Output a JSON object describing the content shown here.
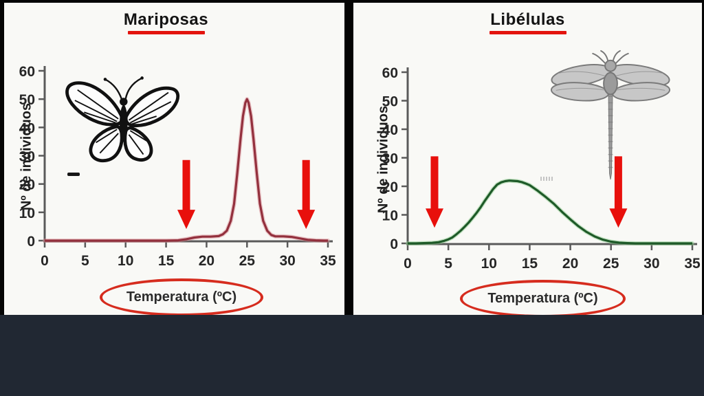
{
  "slide": {
    "background_color": "#000000",
    "bottom_band_color": "#212833",
    "panel_background": "#f9f9f6",
    "layout": "two side-by-side tolerance curve charts separated by black divider"
  },
  "accents": {
    "underline_red": "#e3140e",
    "circle_red": "#d62c1e",
    "arrow_red": "#e8100c",
    "axis_color": "#5a5a5a",
    "tick_text_color": "#262626"
  },
  "chart_data": [
    {
      "type": "line",
      "panel": "left",
      "title": "Mariposas",
      "ylabel": "Nº de individuos",
      "xlabel": "Temperatura (ºC)",
      "xlabel_circled": true,
      "xlim": [
        0,
        35
      ],
      "ylim": [
        0,
        60
      ],
      "xticks": [
        0,
        5,
        10,
        15,
        20,
        25,
        30,
        35
      ],
      "yticks": [
        0,
        10,
        20,
        30,
        40,
        50,
        60
      ],
      "grid": false,
      "legend": "none",
      "peak": {
        "x": 25,
        "y": 50
      },
      "series": [
        {
          "name": "mariposas",
          "color": "#93303d",
          "halo": "#d98f96",
          "points": [
            [
              0,
              0
            ],
            [
              3,
              0
            ],
            [
              6,
              0
            ],
            [
              9,
              0
            ],
            [
              12,
              0
            ],
            [
              15,
              0
            ],
            [
              16.5,
              0.1
            ],
            [
              17.5,
              0.5
            ],
            [
              18.5,
              1.1
            ],
            [
              19.5,
              1.4
            ],
            [
              20.5,
              1.4
            ],
            [
              21.5,
              1.6
            ],
            [
              22,
              2.2
            ],
            [
              22.5,
              3.5
            ],
            [
              23,
              7
            ],
            [
              23.4,
              13
            ],
            [
              23.8,
              24
            ],
            [
              24.2,
              36
            ],
            [
              24.5,
              44
            ],
            [
              24.8,
              48.7
            ],
            [
              25,
              50
            ],
            [
              25.2,
              48.7
            ],
            [
              25.5,
              44
            ],
            [
              25.8,
              36
            ],
            [
              26.2,
              24
            ],
            [
              26.6,
              13
            ],
            [
              27,
              7
            ],
            [
              27.5,
              3.5
            ],
            [
              28,
              2
            ],
            [
              28.5,
              1.5
            ],
            [
              29.5,
              1.5
            ],
            [
              30.5,
              1.3
            ],
            [
              31.5,
              0.8
            ],
            [
              32.5,
              0.3
            ],
            [
              33.5,
              0.1
            ],
            [
              34.5,
              0
            ],
            [
              35,
              0
            ]
          ]
        }
      ],
      "annotations": {
        "arrow_color": "#e8100c",
        "arrows_x": [
          17.5,
          32.3
        ],
        "arrow_value_span": [
          28.5,
          4.1
        ],
        "insect": "butterfly",
        "extra_mark": "short black dash left of butterfly"
      }
    },
    {
      "type": "line",
      "panel": "right",
      "title": "Libélulas",
      "ylabel": "Nº de individuos",
      "xlabel": "Temperatura (ºC)",
      "xlabel_circled": true,
      "xlim": [
        0,
        35
      ],
      "ylim": [
        0,
        60
      ],
      "xticks": [
        0,
        5,
        10,
        15,
        20,
        25,
        30,
        35
      ],
      "yticks": [
        0,
        10,
        20,
        30,
        40,
        50,
        60
      ],
      "grid": false,
      "legend": "none",
      "peak": {
        "x": 12.5,
        "y": 22
      },
      "series": [
        {
          "name": "libelulas",
          "color": "#1e5a28",
          "halo": "#8fce8f",
          "points": [
            [
              0,
              0
            ],
            [
              1,
              0
            ],
            [
              2,
              0.1
            ],
            [
              3,
              0.2
            ],
            [
              3.8,
              0.4
            ],
            [
              4.5,
              0.9
            ],
            [
              5,
              1.4
            ],
            [
              5.5,
              2.1
            ],
            [
              6,
              3.2
            ],
            [
              6.5,
              4.4
            ],
            [
              7,
              5.8
            ],
            [
              7.5,
              7.3
            ],
            [
              8,
              9
            ],
            [
              8.5,
              10.8
            ],
            [
              9,
              12.8
            ],
            [
              9.5,
              15
            ],
            [
              10,
              17
            ],
            [
              10.5,
              19
            ],
            [
              11,
              20.6
            ],
            [
              11.5,
              21.4
            ],
            [
              12,
              21.8
            ],
            [
              12.5,
              22
            ],
            [
              13,
              21.9
            ],
            [
              13.5,
              21.8
            ],
            [
              14,
              21.5
            ],
            [
              14.5,
              21
            ],
            [
              15,
              20.4
            ],
            [
              16,
              18.4
            ],
            [
              17,
              16.2
            ],
            [
              18,
              13.8
            ],
            [
              19,
              11
            ],
            [
              20,
              8.4
            ],
            [
              21,
              6
            ],
            [
              22,
              4
            ],
            [
              23,
              2.4
            ],
            [
              24,
              1.3
            ],
            [
              25,
              0.6
            ],
            [
              26,
              0.25
            ],
            [
              27,
              0.1
            ],
            [
              28,
              0
            ],
            [
              30,
              0
            ],
            [
              33,
              0
            ],
            [
              35,
              0
            ]
          ]
        }
      ],
      "annotations": {
        "arrow_color": "#e8100c",
        "arrows_x": [
          3.3,
          25.9
        ],
        "arrow_value_span": [
          30.5,
          5.5
        ],
        "insect": "dragonfly",
        "extra_mark": "tiny illegible gray text near curve plateau"
      }
    }
  ]
}
